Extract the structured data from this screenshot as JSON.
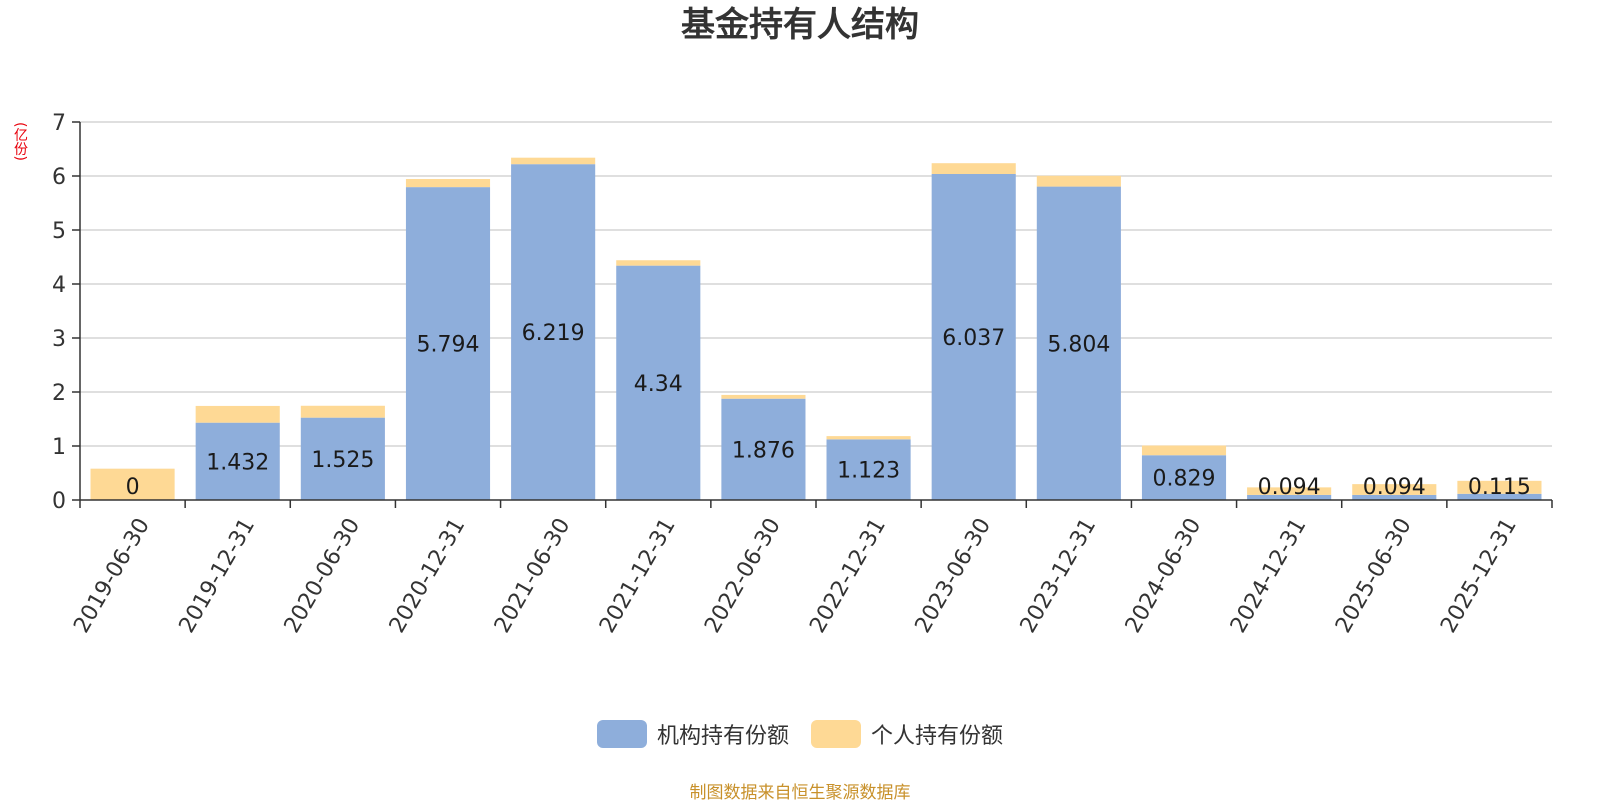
{
  "chart_data": {
    "type": "bar",
    "stacked": true,
    "title": "基金持有人结构",
    "ylabel": "(亿份)",
    "ylim": [
      0,
      7
    ],
    "yticks": [
      0,
      1,
      2,
      3,
      4,
      5,
      6,
      7
    ],
    "grid": true,
    "legend_placement": "bottom",
    "categories": [
      "2019-06-30",
      "2019-12-31",
      "2020-06-30",
      "2020-12-31",
      "2021-06-30",
      "2021-12-31",
      "2022-06-30",
      "2022-12-31",
      "2023-06-30",
      "2023-12-31",
      "2024-06-30",
      "2024-12-31",
      "2025-06-30",
      "2025-12-31"
    ],
    "series": [
      {
        "name": "机构持有份额",
        "color": "#8eaedb",
        "values": [
          0,
          1.432,
          1.525,
          5.794,
          6.219,
          4.34,
          1.876,
          1.123,
          6.037,
          5.804,
          0.829,
          0.094,
          0.094,
          0.115
        ],
        "labels": [
          "0",
          "1.432",
          "1.525",
          "5.794",
          "6.219",
          "4.34",
          "1.876",
          "1.123",
          "6.037",
          "5.804",
          "0.829",
          "0.094",
          "0.094",
          "0.115"
        ]
      },
      {
        "name": "个人持有份额",
        "color": "#fed995",
        "values": [
          0.58,
          0.31,
          0.22,
          0.15,
          0.12,
          0.1,
          0.07,
          0.06,
          0.2,
          0.2,
          0.18,
          0.14,
          0.2,
          0.24
        ]
      }
    ]
  },
  "legend": {
    "items": [
      {
        "name": "机构持有份额",
        "color": "#8eaedb"
      },
      {
        "name": "个人持有份额",
        "color": "#fed995"
      }
    ]
  },
  "source_note": "制图数据来自恒生聚源数据库"
}
